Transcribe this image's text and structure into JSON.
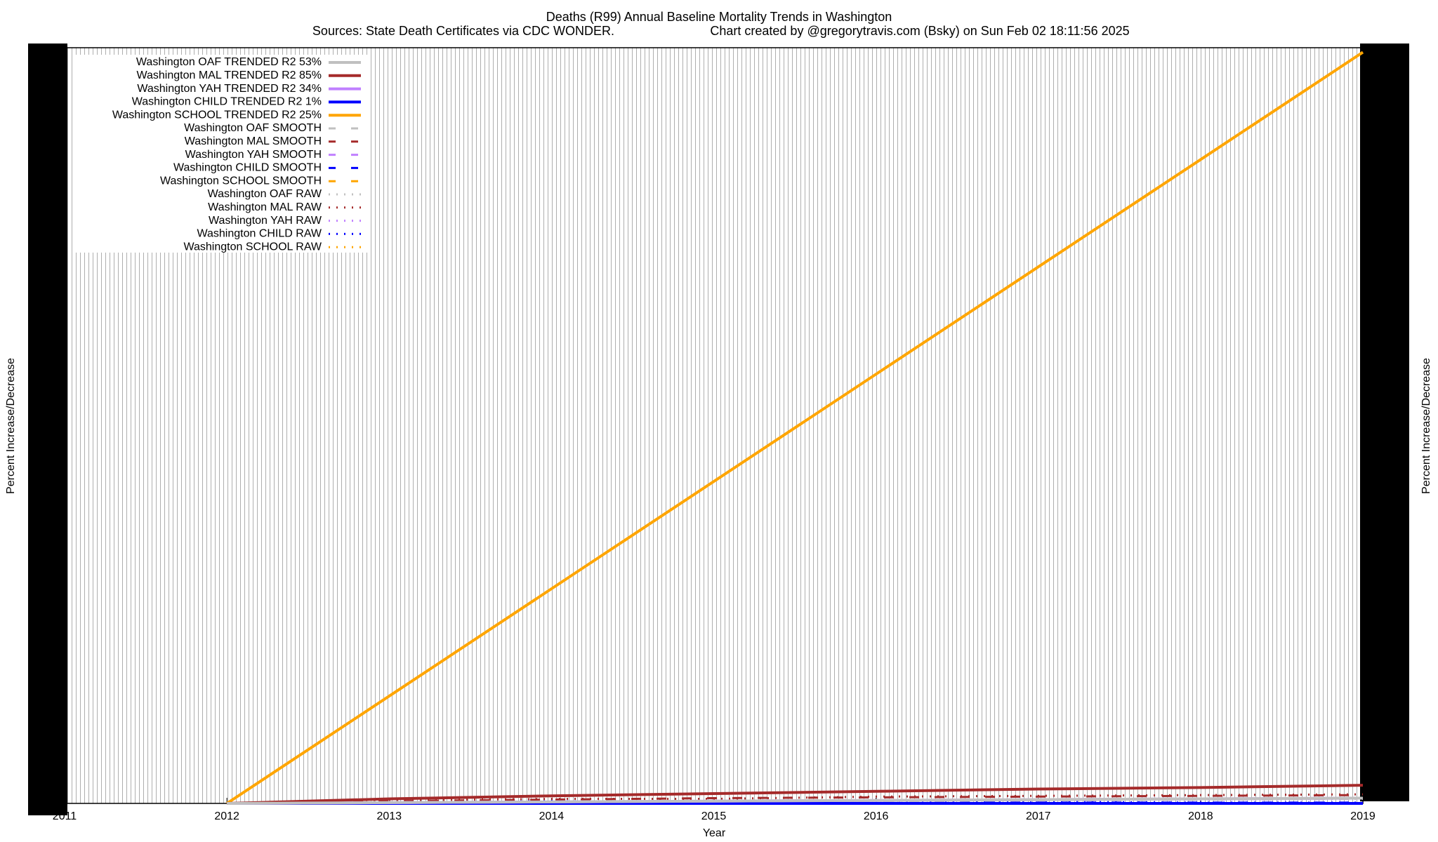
{
  "chart_data": {
    "type": "line",
    "title": "Deaths (R99)  Annual Baseline Mortality Trends in Washington",
    "subtitle": "Sources: State Death Certificates via CDC WONDER.",
    "credit": "Chart created by @gregorytravis.com (Bsky) on Sun Feb 02 18:11:56 2025",
    "xlabel": "Year",
    "ylabel": "Percent Increase/Decrease",
    "y2label": "Percent Increase/Decrease",
    "x": [
      2012,
      2013,
      2014,
      2015,
      2016,
      2017,
      2018,
      2019
    ],
    "xlim": [
      2011,
      2019
    ],
    "xticks": [
      2011,
      2012,
      2013,
      2014,
      2015,
      2016,
      2017,
      2018,
      2019
    ],
    "ylim": [
      0,
      100
    ],
    "grid": true,
    "legend": "upper left",
    "series": [
      {
        "name": "Washington OAF TRENDED R2  53%",
        "color": "#c0c0c0",
        "style": "solid",
        "values": [
          0,
          0.1,
          0.2,
          0.3,
          0.4,
          0.5,
          0.6,
          0.7
        ]
      },
      {
        "name": "Washington MAL TRENDED R2  85%",
        "color": "#a52a2a",
        "style": "solid",
        "values": [
          0,
          0.6,
          1.0,
          1.3,
          1.6,
          1.9,
          2.1,
          2.4
        ]
      },
      {
        "name": "Washington YAH TRENDED R2  34%",
        "color": "#c080ff",
        "style": "solid",
        "values": [
          0,
          0.1,
          0.2,
          0.3,
          0.4,
          0.5,
          0.6,
          0.7
        ]
      },
      {
        "name": "Washington CHILD TRENDED R2   1%",
        "color": "#0000ff",
        "style": "solid",
        "values": [
          0,
          0,
          0,
          0,
          0,
          0,
          0,
          0
        ]
      },
      {
        "name": "Washington SCHOOL TRENDED R2  25%",
        "color": "#ffa500",
        "style": "solid",
        "values": [
          0,
          14.2,
          28.4,
          42.6,
          56.8,
          71,
          85.2,
          99.4
        ]
      },
      {
        "name": "Washington OAF SMOOTH",
        "color": "#c0c0c0",
        "style": "dashed",
        "values": [
          0,
          0.1,
          0.2,
          0.3,
          0.3,
          0.4,
          0.5,
          0.6
        ]
      },
      {
        "name": "Washington MAL SMOOTH",
        "color": "#a52a2a",
        "style": "dashed",
        "values": [
          0,
          0.3,
          0.5,
          0.7,
          0.8,
          0.9,
          1.0,
          1.1
        ]
      },
      {
        "name": "Washington YAH SMOOTH",
        "color": "#c080ff",
        "style": "dashed",
        "values": [
          0,
          0.1,
          0.2,
          0.3,
          0.4,
          0.4,
          0.5,
          0.6
        ]
      },
      {
        "name": "Washington CHILD SMOOTH",
        "color": "#0000ff",
        "style": "dashed",
        "values": [
          0,
          0.1,
          0.2,
          0.2,
          0.1,
          0.1,
          0.1,
          0.1
        ]
      },
      {
        "name": "Washington SCHOOL SMOOTH",
        "color": "#ffa500",
        "style": "dashed",
        "values": [
          0,
          14.2,
          28.4,
          42.6,
          56.8,
          71,
          85.2,
          99.4
        ]
      },
      {
        "name": "Washington OAF RAW",
        "color": "#c0c0c0",
        "style": "dotted",
        "values": [
          0,
          0.2,
          0.1,
          0.3,
          0.4,
          0.4,
          0.6,
          0.6
        ]
      },
      {
        "name": "Washington MAL RAW",
        "color": "#a52a2a",
        "style": "dotted",
        "values": [
          0,
          0.4,
          0.6,
          0.6,
          0.9,
          1.0,
          1.1,
          1.2
        ]
      },
      {
        "name": "Washington YAH RAW",
        "color": "#c080ff",
        "style": "dotted",
        "values": [
          0,
          0.2,
          0.1,
          0.3,
          0.3,
          0.5,
          0.5,
          0.6
        ]
      },
      {
        "name": "Washington CHILD RAW",
        "color": "#0000ff",
        "style": "dotted",
        "values": [
          0,
          0.1,
          0.3,
          0.2,
          0.1,
          0.2,
          0.1,
          0.1
        ]
      },
      {
        "name": "Washington SCHOOL RAW",
        "color": "#ffa500",
        "style": "dotted",
        "values": [
          0,
          14.2,
          28.4,
          42.6,
          56.8,
          71,
          85.2,
          99.4
        ]
      }
    ]
  }
}
